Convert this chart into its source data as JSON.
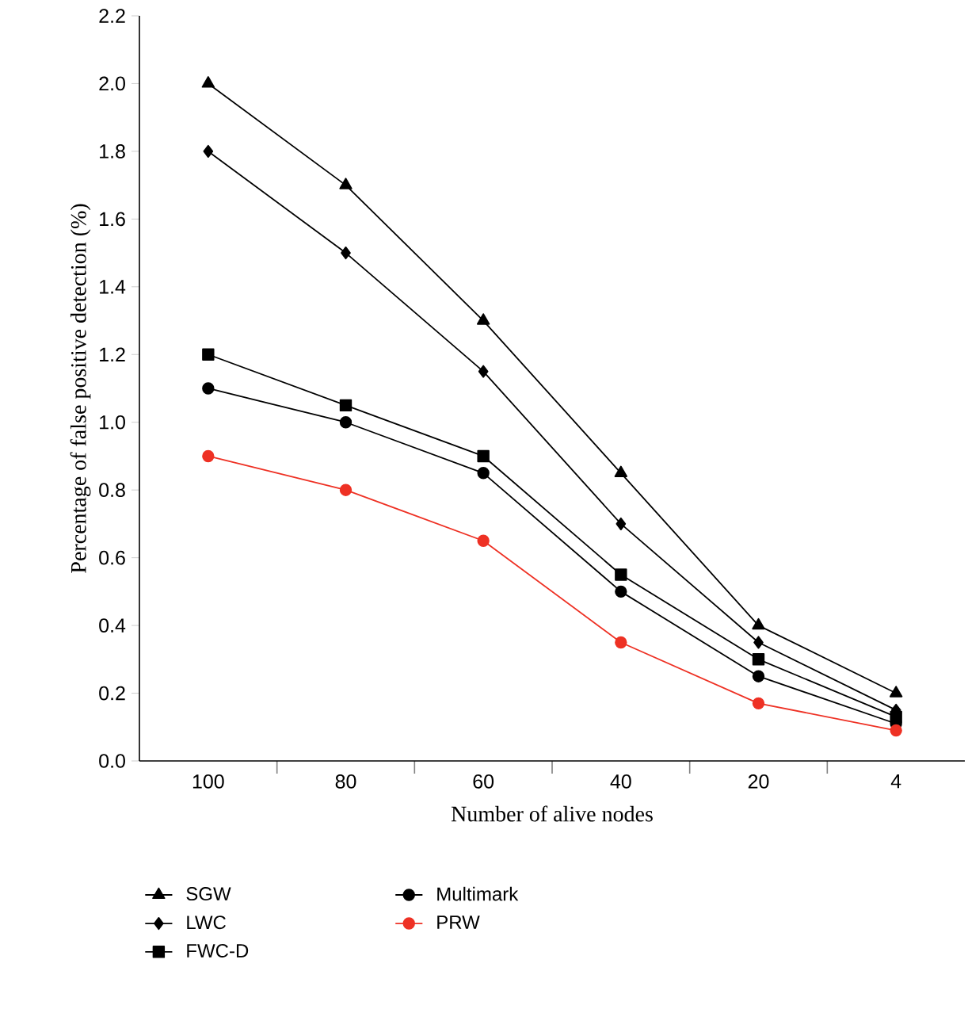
{
  "chart_data": {
    "type": "line",
    "xlabel": "Number of alive nodes",
    "ylabel": "Percentage of false positive detection (%)",
    "categories": [
      "100",
      "80",
      "60",
      "40",
      "20",
      "4"
    ],
    "ylim": [
      0,
      2.2
    ],
    "yticks": [
      {
        "value": 0,
        "label": "0.0"
      },
      0.2,
      0.4,
      0.6,
      0.8,
      {
        "value": 1,
        "label": "1.0"
      },
      1.2,
      1.4,
      1.6,
      1.8,
      {
        "value": 2,
        "label": "2.0"
      },
      2.2
    ],
    "grid": false,
    "legend": "bottom",
    "series": [
      {
        "name": "SGW",
        "color": "#000000",
        "marker": "triangle",
        "values": [
          2.0,
          1.7,
          1.3,
          0.85,
          0.4,
          0.2
        ]
      },
      {
        "name": "LWC",
        "color": "#000000",
        "marker": "diamond",
        "values": [
          1.8,
          1.5,
          1.15,
          0.7,
          0.35,
          0.15
        ]
      },
      {
        "name": "FWC-D",
        "color": "#000000",
        "marker": "square",
        "values": [
          1.2,
          1.05,
          0.9,
          0.55,
          0.3,
          0.13
        ]
      },
      {
        "name": "Multimark",
        "color": "#000000",
        "marker": "circle",
        "values": [
          1.1,
          1.0,
          0.85,
          0.5,
          0.25,
          0.11
        ]
      },
      {
        "name": "PRW",
        "color": "#ee3124",
        "marker": "circle",
        "values": [
          0.9,
          0.8,
          0.65,
          0.35,
          0.17,
          0.09
        ]
      }
    ]
  }
}
